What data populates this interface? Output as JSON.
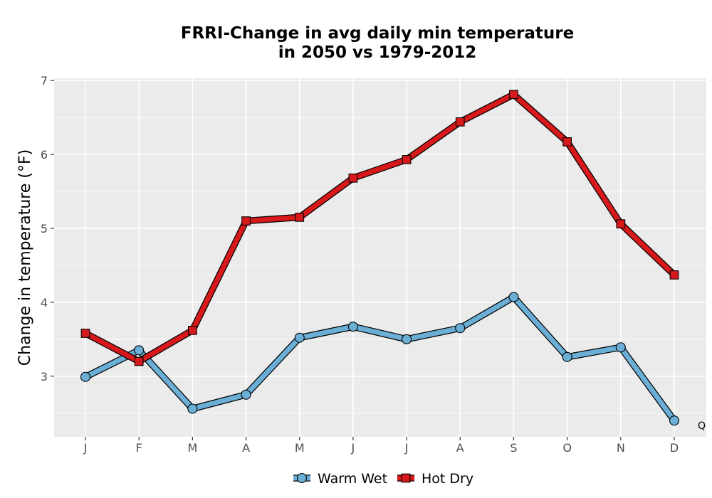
{
  "chart_data": {
    "type": "line",
    "title_lines": [
      "FRRI-Change in avg daily min temperature",
      "in 2050 vs 1979-2012"
    ],
    "xlabel": "",
    "ylabel": "Change in temperature (°F)",
    "categories": [
      "J",
      "F",
      "M",
      "A",
      "M",
      "J",
      "J",
      "A",
      "S",
      "O",
      "N",
      "D"
    ],
    "ylim": [
      2.18,
      7.03
    ],
    "yticks": [
      3,
      4,
      5,
      6,
      7
    ],
    "grid": true,
    "legend_position": "bottom",
    "series": [
      {
        "name": "Warm Wet",
        "color": "#6baed6",
        "marker": "circle",
        "values": [
          2.99,
          3.35,
          2.56,
          2.75,
          3.52,
          3.67,
          3.5,
          3.65,
          4.07,
          3.26,
          3.39,
          2.4
        ]
      },
      {
        "name": "Hot Dry",
        "color": "#d7191c",
        "marker": "square",
        "values": [
          3.58,
          3.2,
          3.62,
          5.1,
          5.15,
          5.68,
          5.93,
          6.44,
          6.81,
          6.17,
          5.06,
          4.37
        ]
      }
    ],
    "corner_mark": "Q"
  }
}
